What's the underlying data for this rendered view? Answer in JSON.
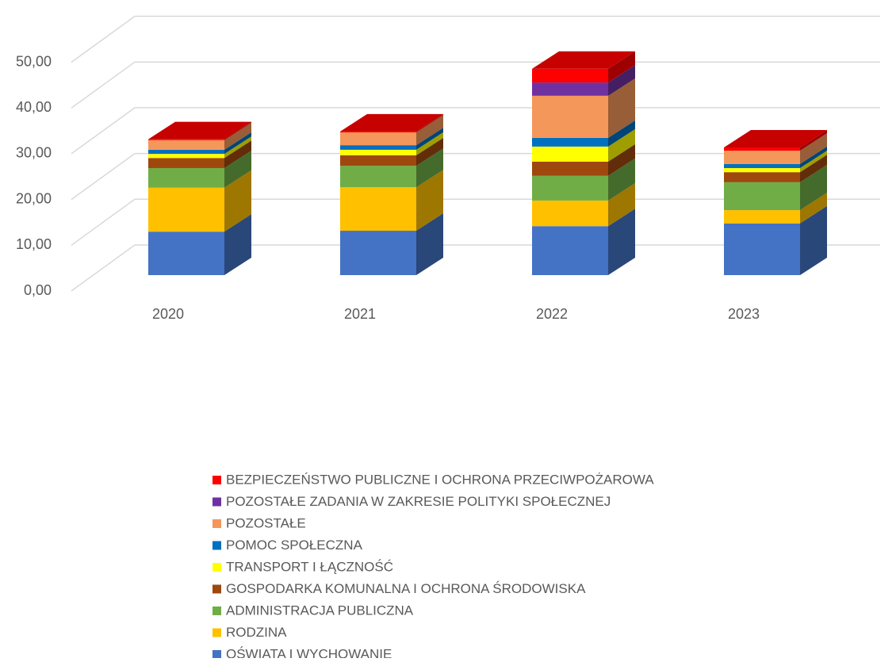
{
  "chart_data": {
    "type": "bar3d_stacked",
    "categories": [
      "2020",
      "2021",
      "2022",
      "2023"
    ],
    "series": [
      {
        "name": "OŚWIATA I WYCHOWANIE",
        "color": "#4472c4",
        "values": [
          9.5,
          9.7,
          10.7,
          11.3
        ]
      },
      {
        "name": "RODZINA",
        "color": "#ffc000",
        "values": [
          9.6,
          9.5,
          5.6,
          2.9
        ]
      },
      {
        "name": "ADMINISTRACJA PUBLICZNA",
        "color": "#70ad47",
        "values": [
          4.3,
          4.7,
          5.4,
          6.1
        ]
      },
      {
        "name": "GOSPODARKA KOMUNALNA I OCHRONA ŚRODOWISKA",
        "color": "#9e480e",
        "values": [
          2.2,
          2.3,
          3.1,
          2.2
        ]
      },
      {
        "name": "TRANSPORT I ŁĄCZNOŚĆ",
        "color": "#ffff00",
        "values": [
          0.9,
          1.2,
          3.3,
          0.9
        ]
      },
      {
        "name": "POMOC SPOŁECZNA",
        "color": "#0070c0",
        "values": [
          0.9,
          1.0,
          1.9,
          0.9
        ]
      },
      {
        "name": "POZOSTAŁE",
        "color": "#f4975a",
        "values": [
          2.1,
          2.8,
          9.2,
          2.9
        ]
      },
      {
        "name": "POZOSTAŁE ZADANIA W ZAKRESIE POLITYKI SPOŁECZNEJ",
        "color": "#7030a0",
        "values": [
          0,
          0,
          2.9,
          0
        ]
      },
      {
        "name": "BEZPIECZEŃSTWO PUBLICZNE I OCHRONA PRZECIWPOŻAROWA",
        "color": "#ff0000",
        "values": [
          0.2,
          0.2,
          3.0,
          0.7
        ]
      }
    ],
    "ylim": [
      0,
      50
    ],
    "yticks": [
      {
        "value": 0,
        "label": "0,00"
      },
      {
        "value": 10,
        "label": "10,00"
      },
      {
        "value": 20,
        "label": "20,00"
      },
      {
        "value": 30,
        "label": "30,00"
      },
      {
        "value": 40,
        "label": "40,00"
      },
      {
        "value": 50,
        "label": "50,00"
      }
    ],
    "grid": true,
    "legend": "bottom"
  }
}
